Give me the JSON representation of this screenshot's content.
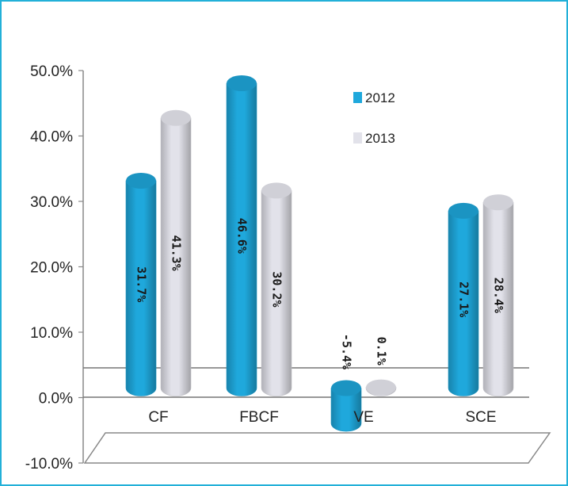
{
  "chart_data": {
    "type": "bar",
    "style": "3d-cylinder",
    "categories": [
      "CF",
      "FBCF",
      "VE",
      "SCE"
    ],
    "series": [
      {
        "name": "2012",
        "color": "#1fa8dc",
        "values": [
          31.7,
          46.6,
          -5.4,
          27.1
        ],
        "labels": [
          "31.7%",
          "46.6%",
          "-5.4%",
          "27.1%"
        ]
      },
      {
        "name": "2013",
        "color": "#e2e2ea",
        "values": [
          41.3,
          30.2,
          0.1,
          28.4
        ],
        "labels": [
          "41.3%",
          "30.2%",
          "0.1%",
          "28.4%"
        ]
      }
    ],
    "yticks": [
      "50.0%",
      "40.0%",
      "30.0%",
      "20.0%",
      "10.0%",
      "0.0%",
      "-10.0%"
    ],
    "ylim": [
      -10,
      50
    ],
    "legend_position": "top-right",
    "grid": false
  },
  "colors": {
    "border": "#22b0d8",
    "series_2012": "#1fa8dc",
    "series_2013": "#e2e2ea"
  }
}
